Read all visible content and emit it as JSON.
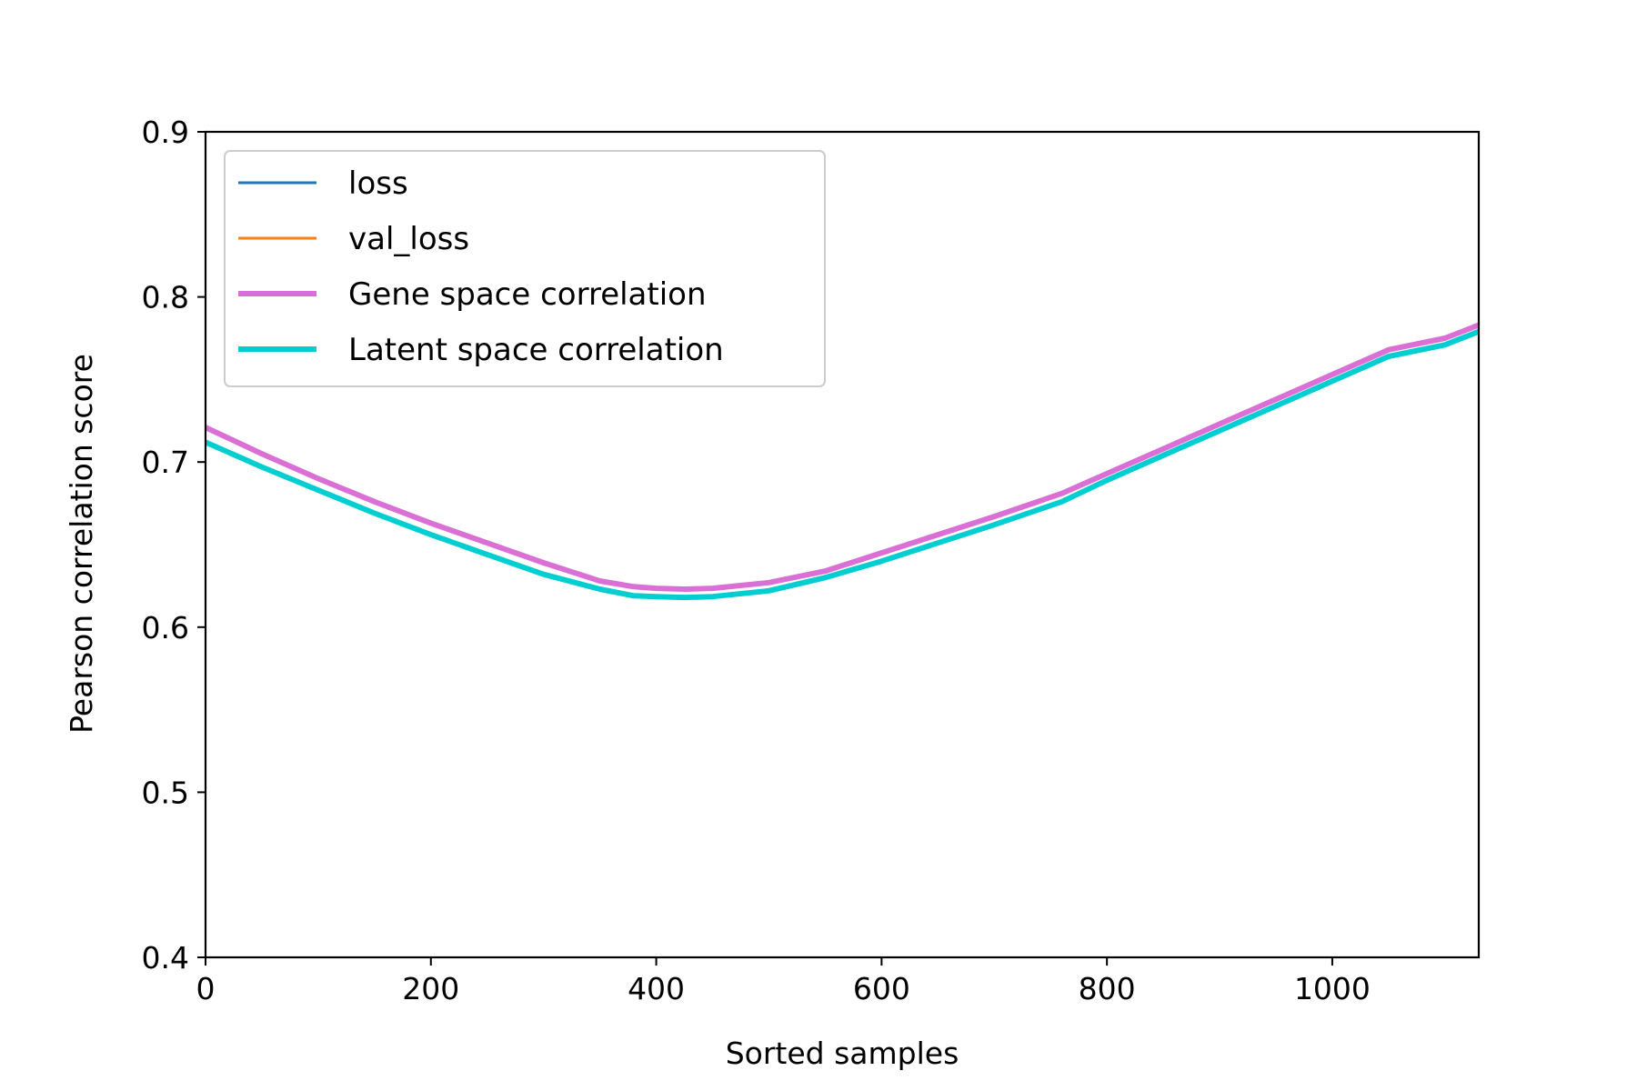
{
  "chart_data": {
    "type": "line",
    "xlabel": "Sorted samples",
    "ylabel": "Pearson correlation score",
    "xlim": [
      0,
      1130
    ],
    "ylim": [
      0.4,
      0.9
    ],
    "xticks": [
      0,
      200,
      400,
      600,
      800,
      1000
    ],
    "xtick_labels": [
      "0",
      "200",
      "400",
      "600",
      "800",
      "1000"
    ],
    "yticks": [
      0.4,
      0.5,
      0.6,
      0.7,
      0.8,
      0.9
    ],
    "ytick_labels": [
      "0.4",
      "0.5",
      "0.6",
      "0.7",
      "0.8",
      "0.9"
    ],
    "grid": false,
    "legend_position": "top-left",
    "series": [
      {
        "name": "loss",
        "color": "#1f77b4",
        "x": [],
        "y": []
      },
      {
        "name": "val_loss",
        "color": "#ff7f0e",
        "x": [],
        "y": []
      },
      {
        "name": "Gene space correlation",
        "color": "#da70d6",
        "x": [
          0,
          50,
          100,
          150,
          200,
          250,
          300,
          350,
          380,
          400,
          425,
          450,
          500,
          550,
          600,
          650,
          700,
          760,
          800,
          850,
          900,
          950,
          1000,
          1050,
          1100,
          1130
        ],
        "y": [
          0.721,
          0.705,
          0.69,
          0.676,
          0.663,
          0.651,
          0.639,
          0.628,
          0.6245,
          0.6235,
          0.623,
          0.6235,
          0.627,
          0.634,
          0.645,
          0.656,
          0.667,
          0.681,
          0.693,
          0.708,
          0.723,
          0.738,
          0.753,
          0.768,
          0.775,
          0.783
        ]
      },
      {
        "name": "Latent space correlation",
        "color": "#00ced1",
        "x": [
          0,
          50,
          100,
          150,
          200,
          250,
          300,
          350,
          380,
          400,
          425,
          450,
          500,
          550,
          600,
          650,
          700,
          760,
          800,
          850,
          900,
          950,
          1000,
          1050,
          1100,
          1130
        ],
        "y": [
          0.712,
          0.697,
          0.683,
          0.669,
          0.656,
          0.644,
          0.632,
          0.623,
          0.619,
          0.6185,
          0.618,
          0.6185,
          0.622,
          0.63,
          0.64,
          0.651,
          0.662,
          0.676,
          0.689,
          0.704,
          0.719,
          0.734,
          0.749,
          0.764,
          0.771,
          0.779
        ]
      }
    ]
  }
}
